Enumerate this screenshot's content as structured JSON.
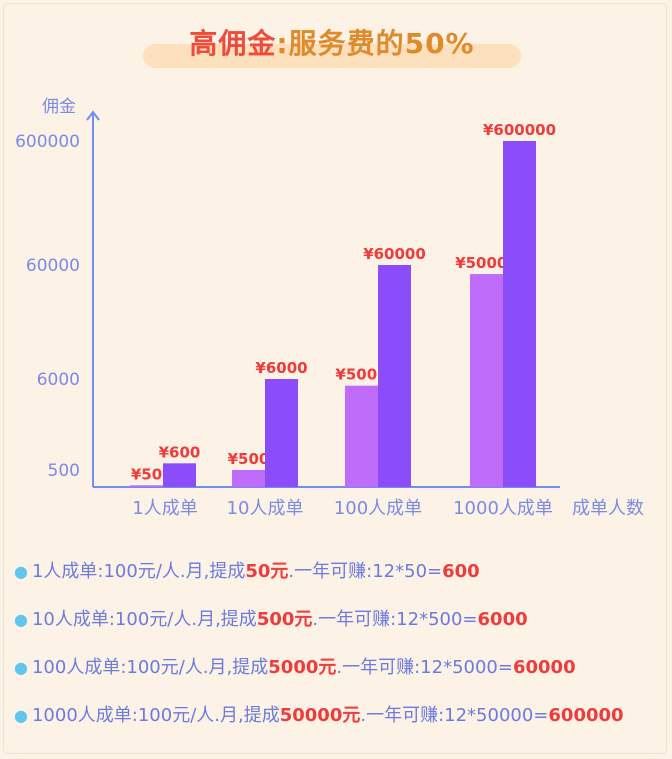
{
  "title": {
    "part1": "高佣金",
    "part2": ":服务费的50%"
  },
  "chart_data": {
    "type": "bar",
    "ylabel": "佣金",
    "xlabel": "成单人数",
    "categories": [
      "1人成单",
      "10人成单",
      "100人成单",
      "1000人成单"
    ],
    "y_ticks": [
      "500",
      "6000",
      "60000",
      "600000"
    ],
    "series": [
      {
        "values": [
          50,
          500,
          5000,
          50000
        ],
        "labels": [
          "¥50",
          "¥500",
          "¥5000",
          "¥50000"
        ],
        "color": "#c06cfa"
      },
      {
        "values": [
          600,
          6000,
          60000,
          600000
        ],
        "labels": [
          "¥600",
          "¥6000",
          "¥60000",
          "¥600000"
        ],
        "color": "#8b4dfa"
      }
    ],
    "colors": {
      "axis": "#6f8ef2",
      "label": "#ef3b3b",
      "tick": "#7b8be6"
    }
  },
  "notes": [
    {
      "pre": "1人成单:100元/人.月,提成",
      "hl1": "50元",
      "mid": ".一年可赚:12*50=",
      "hl2": "600"
    },
    {
      "pre": "10人成单:100元/人.月,提成",
      "hl1": "500元",
      "mid": ".一年可赚:12*500=",
      "hl2": "6000"
    },
    {
      "pre": "100人成单:100元/人.月,提成",
      "hl1": "5000元",
      "mid": ".一年可赚:12*5000=",
      "hl2": "60000"
    },
    {
      "pre": "1000人成单:100元/人.月,提成",
      "hl1": "50000元",
      "mid": ".一年可赚:12*50000=",
      "hl2": "600000"
    }
  ]
}
